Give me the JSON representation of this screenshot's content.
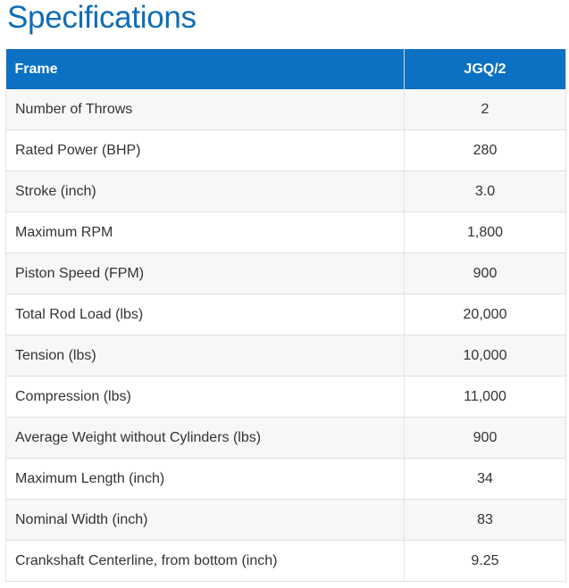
{
  "page": {
    "title": "Specifications"
  },
  "table": {
    "header": {
      "label": "Frame",
      "value": "JGQ/2"
    },
    "rows": [
      {
        "label": "Number of Throws",
        "value": "2"
      },
      {
        "label": "Rated Power (BHP)",
        "value": "280"
      },
      {
        "label": "Stroke (inch)",
        "value": "3.0"
      },
      {
        "label": "Maximum RPM",
        "value": "1,800"
      },
      {
        "label": "Piston Speed (FPM)",
        "value": "900"
      },
      {
        "label": "Total Rod Load (lbs)",
        "value": "20,000"
      },
      {
        "label": "Tension (lbs)",
        "value": "10,000"
      },
      {
        "label": "Compression (lbs)",
        "value": "11,000"
      },
      {
        "label": "Average Weight without Cylinders (lbs)",
        "value": "900"
      },
      {
        "label": "Maximum Length (inch)",
        "value": "34"
      },
      {
        "label": "Nominal Width (inch)",
        "value": "83"
      },
      {
        "label": "Crankshaft Centerline, from bottom (inch)",
        "value": "9.25"
      }
    ]
  },
  "colors": {
    "title": "#0f6db3",
    "header_background": "#0c71c3",
    "header_text": "#ffffff",
    "row_stripe": "#f7f7f7",
    "row_text": "#333333"
  }
}
